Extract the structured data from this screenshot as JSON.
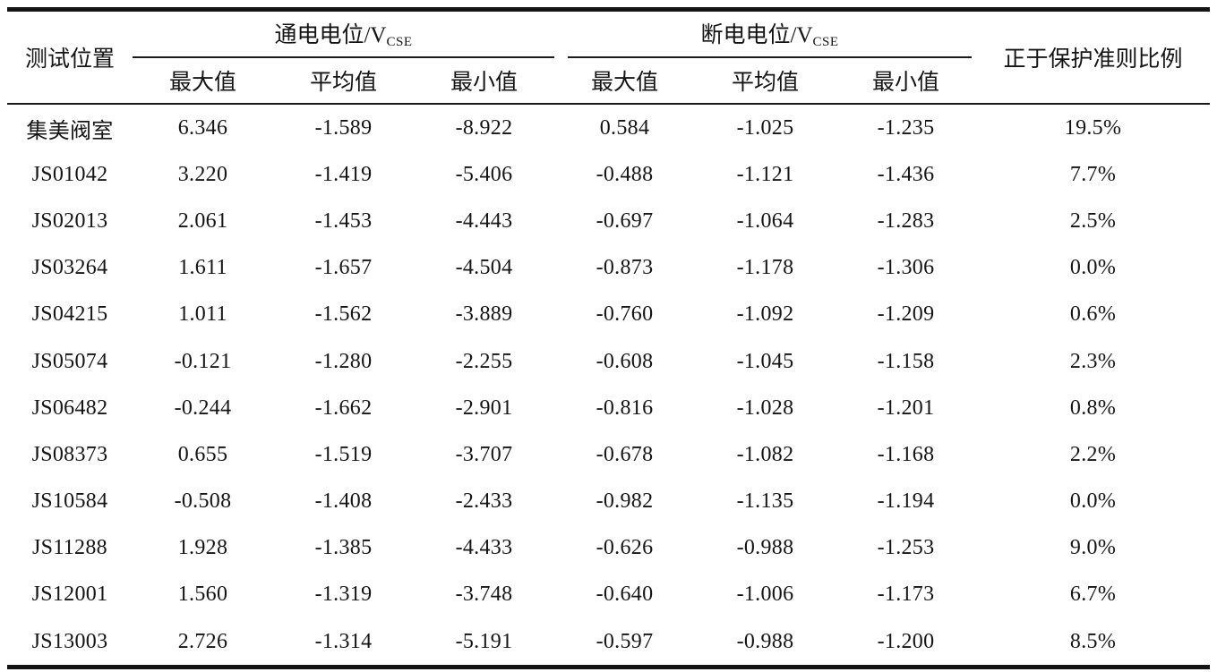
{
  "table": {
    "col_location_header": "测试位置",
    "group_on": {
      "title": "通电电位/V",
      "sub": "CSE"
    },
    "group_off": {
      "title": "断电电位/V",
      "sub": "CSE"
    },
    "subheaders": [
      "最大值",
      "平均值",
      "最小值"
    ],
    "col_ratio_header": "正于保护准则比例",
    "rows": [
      [
        "集美阀室",
        "6.346",
        "-1.589",
        "-8.922",
        "0.584",
        "-1.025",
        "-1.235",
        "19.5%"
      ],
      [
        "JS01042",
        "3.220",
        "-1.419",
        "-5.406",
        "-0.488",
        "-1.121",
        "-1.436",
        "7.7%"
      ],
      [
        "JS02013",
        "2.061",
        "-1.453",
        "-4.443",
        "-0.697",
        "-1.064",
        "-1.283",
        "2.5%"
      ],
      [
        "JS03264",
        "1.611",
        "-1.657",
        "-4.504",
        "-0.873",
        "-1.178",
        "-1.306",
        "0.0%"
      ],
      [
        "JS04215",
        "1.011",
        "-1.562",
        "-3.889",
        "-0.760",
        "-1.092",
        "-1.209",
        "0.6%"
      ],
      [
        "JS05074",
        "-0.121",
        "-1.280",
        "-2.255",
        "-0.608",
        "-1.045",
        "-1.158",
        "2.3%"
      ],
      [
        "JS06482",
        "-0.244",
        "-1.662",
        "-2.901",
        "-0.816",
        "-1.028",
        "-1.201",
        "0.8%"
      ],
      [
        "JS08373",
        "0.655",
        "-1.519",
        "-3.707",
        "-0.678",
        "-1.082",
        "-1.168",
        "2.2%"
      ],
      [
        "JS10584",
        "-0.508",
        "-1.408",
        "-2.433",
        "-0.982",
        "-1.135",
        "-1.194",
        "0.0%"
      ],
      [
        "JS11288",
        "1.928",
        "-1.385",
        "-4.433",
        "-0.626",
        "-0.988",
        "-1.253",
        "9.0%"
      ],
      [
        "JS12001",
        "1.560",
        "-1.319",
        "-3.748",
        "-0.640",
        "-1.006",
        "-1.173",
        "6.7%"
      ],
      [
        "JS13003",
        "2.726",
        "-1.314",
        "-5.191",
        "-0.597",
        "-0.988",
        "-1.200",
        "8.5%"
      ]
    ]
  },
  "chart_data": {
    "type": "table",
    "title": "",
    "column_groups": [
      "测试位置",
      "通电电位/VCSE",
      "断电电位/VCSE",
      "正于保护准则比例"
    ],
    "columns": [
      "测试位置",
      "通电电位最大值",
      "通电电位平均值",
      "通电电位最小值",
      "断电电位最大值",
      "断电电位平均值",
      "断电电位最小值",
      "正于保护准则比例"
    ],
    "rows": [
      [
        "集美阀室",
        6.346,
        -1.589,
        -8.922,
        0.584,
        -1.025,
        -1.235,
        "19.5%"
      ],
      [
        "JS01042",
        3.22,
        -1.419,
        -5.406,
        -0.488,
        -1.121,
        -1.436,
        "7.7%"
      ],
      [
        "JS02013",
        2.061,
        -1.453,
        -4.443,
        -0.697,
        -1.064,
        -1.283,
        "2.5%"
      ],
      [
        "JS03264",
        1.611,
        -1.657,
        -4.504,
        -0.873,
        -1.178,
        -1.306,
        "0.0%"
      ],
      [
        "JS04215",
        1.011,
        -1.562,
        -3.889,
        -0.76,
        -1.092,
        -1.209,
        "0.6%"
      ],
      [
        "JS05074",
        -0.121,
        -1.28,
        -2.255,
        -0.608,
        -1.045,
        -1.158,
        "2.3%"
      ],
      [
        "JS06482",
        -0.244,
        -1.662,
        -2.901,
        -0.816,
        -1.028,
        -1.201,
        "0.8%"
      ],
      [
        "JS08373",
        0.655,
        -1.519,
        -3.707,
        -0.678,
        -1.082,
        -1.168,
        "2.2%"
      ],
      [
        "JS10584",
        -0.508,
        -1.408,
        -2.433,
        -0.982,
        -1.135,
        -1.194,
        "0.0%"
      ],
      [
        "JS11288",
        1.928,
        -1.385,
        -4.433,
        -0.626,
        -0.988,
        -1.253,
        "9.0%"
      ],
      [
        "JS12001",
        1.56,
        -1.319,
        -3.748,
        -0.64,
        -1.006,
        -1.173,
        "6.7%"
      ],
      [
        "JS13003",
        2.726,
        -1.314,
        -5.191,
        -0.597,
        -0.988,
        -1.2,
        "8.5%"
      ]
    ]
  }
}
